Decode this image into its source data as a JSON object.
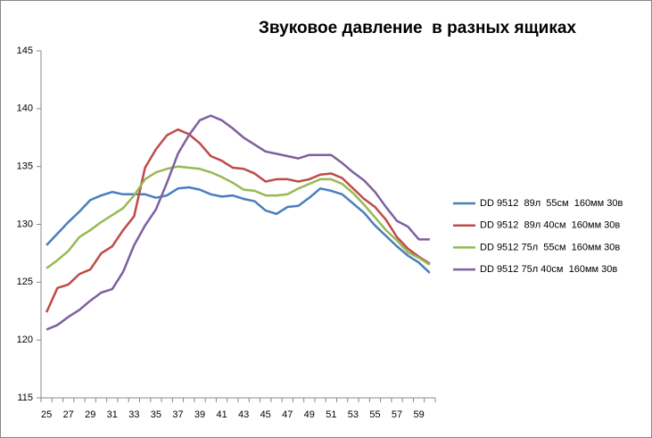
{
  "chart_data": {
    "type": "line",
    "title": "Звуковое давление  в разных ящиках",
    "categories": [
      "25",
      null,
      "27",
      null,
      "29",
      null,
      "31",
      null,
      "33",
      null,
      "35",
      null,
      "37",
      null,
      "39",
      null,
      "41",
      null,
      "43",
      null,
      "45",
      null,
      "47",
      null,
      "49",
      null,
      "51",
      null,
      "53",
      null,
      "55",
      null,
      "57",
      null,
      "59",
      null
    ],
    "ylim": [
      115,
      145
    ],
    "yticks": [
      115,
      120,
      125,
      130,
      135,
      140,
      145
    ],
    "grid": false,
    "legend": "right",
    "series": [
      {
        "name": "DD 9512  89л  55см  160мм 30в",
        "color": "#4a7ebb",
        "values": [
          128.2,
          129.2,
          130.2,
          131.1,
          132.1,
          132.5,
          132.8,
          132.6,
          132.6,
          132.6,
          132.3,
          132.5,
          133.1,
          133.2,
          133.0,
          132.6,
          132.4,
          132.5,
          132.2,
          132.0,
          131.2,
          130.9,
          131.5,
          131.6,
          132.3,
          133.1,
          132.9,
          132.6,
          131.8,
          131.0,
          129.9,
          129.0,
          128.1,
          127.3,
          126.7,
          125.8
        ]
      },
      {
        "name": "DD 9512  89л 40см  160мм 30в",
        "color": "#be4b48",
        "values": [
          122.4,
          124.5,
          124.8,
          125.7,
          126.1,
          127.5,
          128.1,
          129.5,
          130.7,
          134.9,
          136.5,
          137.7,
          138.2,
          137.8,
          137.0,
          135.9,
          135.5,
          134.9,
          134.8,
          134.4,
          133.7,
          133.9,
          133.9,
          133.7,
          133.9,
          134.3,
          134.4,
          134.0,
          133.1,
          132.2,
          131.5,
          130.4,
          128.9,
          127.9,
          127.2,
          126.6
        ]
      },
      {
        "name": "DD 9512 75л  55см  160мм 30в",
        "color": "#98b954",
        "values": [
          126.2,
          126.9,
          127.7,
          128.9,
          129.5,
          130.2,
          130.8,
          131.4,
          132.5,
          133.9,
          134.5,
          134.8,
          135.0,
          134.9,
          134.8,
          134.5,
          134.1,
          133.6,
          133.0,
          132.9,
          132.5,
          132.5,
          132.6,
          133.1,
          133.5,
          133.9,
          133.9,
          133.5,
          132.7,
          131.7,
          130.6,
          129.5,
          128.6,
          127.6,
          127.1,
          126.5
        ]
      },
      {
        "name": "DD 9512 75л 40см  160мм 30в",
        "color": "#7d60a0",
        "values": [
          120.9,
          121.3,
          122.0,
          122.6,
          123.4,
          124.1,
          124.4,
          125.9,
          128.2,
          129.9,
          131.3,
          133.6,
          136.1,
          137.7,
          139.0,
          139.4,
          139.0,
          138.3,
          137.5,
          136.9,
          136.3,
          136.1,
          135.9,
          135.7,
          136.0,
          136.0,
          136.0,
          135.3,
          134.5,
          133.8,
          132.8,
          131.5,
          130.3,
          129.8,
          128.7,
          128.7
        ]
      }
    ]
  }
}
